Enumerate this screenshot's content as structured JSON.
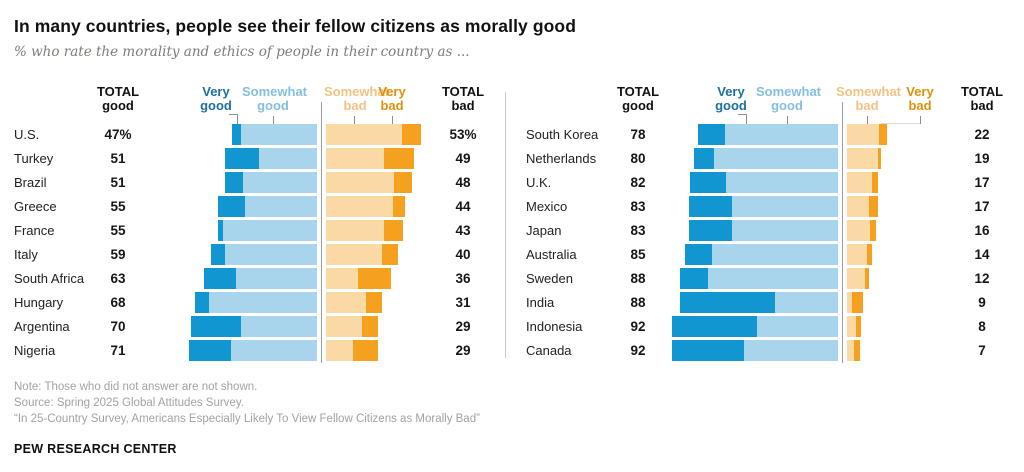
{
  "title": "In many countries, people see their fellow citizens as morally good",
  "subtitle": "% who rate the morality and ethics of people in their country as ...",
  "legend": {
    "total_good_l1": "TOTAL",
    "total_good_l2": "good",
    "very_good_l1": "Very",
    "very_good_l2": "good",
    "somewhat_good_l1": "Somewhat",
    "somewhat_good_l2": "good",
    "somewhat_bad_l1": "Somewhat",
    "somewhat_bad_l2": "bad",
    "very_bad_l1": "Very",
    "very_bad_l2": "bad",
    "total_bad_l1": "TOTAL",
    "total_bad_l2": "bad"
  },
  "colors": {
    "very_good": "#1296d2",
    "somewhat_good": "#a9d5ec",
    "somewhat_bad": "#fbd9a4",
    "very_bad": "#f5a01e"
  },
  "chart_data": {
    "type": "bar",
    "variant": "diverging-stacked-horizontal",
    "units": "%",
    "pixels_per_percent": 1.8,
    "series_names": [
      "Very good",
      "Somewhat good",
      "Somewhat bad",
      "Very bad"
    ],
    "panels": [
      {
        "rows": [
          {
            "country": "U.S.",
            "total_good": "47%",
            "very_good": 5,
            "somewhat_good": 42,
            "somewhat_bad": 42,
            "very_bad": 11,
            "total_bad": "53%"
          },
          {
            "country": "Turkey",
            "total_good": "51",
            "very_good": 19,
            "somewhat_good": 32,
            "somewhat_bad": 32,
            "very_bad": 17,
            "total_bad": "49"
          },
          {
            "country": "Brazil",
            "total_good": "51",
            "very_good": 10,
            "somewhat_good": 41,
            "somewhat_bad": 38,
            "very_bad": 10,
            "total_bad": "48"
          },
          {
            "country": "Greece",
            "total_good": "55",
            "very_good": 15,
            "somewhat_good": 40,
            "somewhat_bad": 37,
            "very_bad": 7,
            "total_bad": "44"
          },
          {
            "country": "France",
            "total_good": "55",
            "very_good": 3,
            "somewhat_good": 52,
            "somewhat_bad": 32,
            "very_bad": 11,
            "total_bad": "43"
          },
          {
            "country": "Italy",
            "total_good": "59",
            "very_good": 8,
            "somewhat_good": 51,
            "somewhat_bad": 31,
            "very_bad": 9,
            "total_bad": "40"
          },
          {
            "country": "South Africa",
            "total_good": "63",
            "very_good": 18,
            "somewhat_good": 45,
            "somewhat_bad": 18,
            "very_bad": 18,
            "total_bad": "36"
          },
          {
            "country": "Hungary",
            "total_good": "68",
            "very_good": 8,
            "somewhat_good": 60,
            "somewhat_bad": 22,
            "very_bad": 9,
            "total_bad": "31"
          },
          {
            "country": "Argentina",
            "total_good": "70",
            "very_good": 28,
            "somewhat_good": 42,
            "somewhat_bad": 20,
            "very_bad": 9,
            "total_bad": "29"
          },
          {
            "country": "Nigeria",
            "total_good": "71",
            "very_good": 23,
            "somewhat_good": 48,
            "somewhat_bad": 15,
            "very_bad": 14,
            "total_bad": "29"
          }
        ]
      },
      {
        "rows": [
          {
            "country": "South Korea",
            "total_good": "78",
            "very_good": 15,
            "somewhat_good": 63,
            "somewhat_bad": 18,
            "very_bad": 4,
            "total_bad": "22"
          },
          {
            "country": "Netherlands",
            "total_good": "80",
            "very_good": 11,
            "somewhat_good": 69,
            "somewhat_bad": 17,
            "very_bad": 2,
            "total_bad": "19"
          },
          {
            "country": "U.K.",
            "total_good": "82",
            "very_good": 20,
            "somewhat_good": 62,
            "somewhat_bad": 14,
            "very_bad": 3,
            "total_bad": "17"
          },
          {
            "country": "Mexico",
            "total_good": "83",
            "very_good": 24,
            "somewhat_good": 59,
            "somewhat_bad": 12,
            "very_bad": 5,
            "total_bad": "17"
          },
          {
            "country": "Japan",
            "total_good": "83",
            "very_good": 24,
            "somewhat_good": 59,
            "somewhat_bad": 13,
            "very_bad": 3,
            "total_bad": "16"
          },
          {
            "country": "Australia",
            "total_good": "85",
            "very_good": 15,
            "somewhat_good": 70,
            "somewhat_bad": 11,
            "very_bad": 3,
            "total_bad": "14"
          },
          {
            "country": "Sweden",
            "total_good": "88",
            "very_good": 16,
            "somewhat_good": 72,
            "somewhat_bad": 10,
            "very_bad": 2,
            "total_bad": "12"
          },
          {
            "country": "India",
            "total_good": "88",
            "very_good": 53,
            "somewhat_good": 35,
            "somewhat_bad": 3,
            "very_bad": 6,
            "total_bad": "9"
          },
          {
            "country": "Indonesia",
            "total_good": "92",
            "very_good": 47,
            "somewhat_good": 45,
            "somewhat_bad": 5,
            "very_bad": 3,
            "total_bad": "8"
          },
          {
            "country": "Canada",
            "total_good": "92",
            "very_good": 40,
            "somewhat_good": 52,
            "somewhat_bad": 4,
            "very_bad": 3,
            "total_bad": "7"
          }
        ]
      }
    ]
  },
  "footer": {
    "note": "Note: Those who did not answer are not shown.",
    "source": "Source: Spring 2025 Global Attitudes Survey.",
    "quote": "“In 25-Country Survey, Americans Especially Likely To View Fellow Citizens as Morally Bad”",
    "brand": "PEW RESEARCH CENTER"
  }
}
